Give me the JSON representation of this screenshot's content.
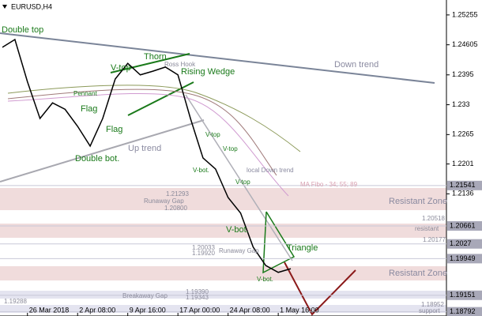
{
  "chart_data": {
    "type": "line",
    "title": "EURUSD,H4",
    "categories": [
      null,
      null,
      "26 Mar 2018",
      null,
      null,
      null,
      "2 Apr 08:00",
      null,
      null,
      null,
      "9 Apr 16:00",
      null,
      null,
      null,
      "17 Apr 00:00",
      null,
      null,
      null,
      "24 Apr 08:00",
      null,
      null,
      null,
      "1 May 16:00",
      null
    ],
    "series": [
      {
        "name": "EURUSD",
        "color": "#000000",
        "values": [
          1.2455,
          1.2472,
          1.238,
          1.23,
          1.2334,
          1.232,
          1.2283,
          1.224,
          1.23,
          1.2386,
          1.242,
          1.2395,
          1.2403,
          1.2412,
          1.2395,
          1.23,
          1.2214,
          1.219,
          1.2128,
          1.2094,
          1.202,
          1.198,
          1.1965,
          1.1973
        ]
      }
    ],
    "ylim": [
      1.187,
      1.2558
    ],
    "yticks": [
      1.25255,
      1.24605,
      1.2395,
      1.233,
      1.2265,
      1.2201,
      1.2136
    ],
    "levels": [
      1.21541,
      1.20661,
      1.2027,
      1.19949,
      1.19151,
      1.18792
    ],
    "annotations": [
      "Double top",
      "Thorn",
      "Ross Hook",
      "Rising Wedge",
      "V-top",
      "Pennant",
      "Flag",
      "Flag",
      "Double bot.",
      "Up trend",
      "Down trend",
      "V-top",
      "V-top",
      "V-bot.",
      "local Down trend",
      "MA Fibo - 34; 55; 89",
      "Resistant Zone",
      "V-top",
      "1.21293",
      "Runaway Gap",
      "1.20800",
      "V-bot.",
      "1.20518",
      "resistant",
      "1.20177",
      "Triangle",
      "1.20033",
      "1.19920",
      "Runaway Gap",
      "Resistant Zone",
      "Breakaway Gap",
      "1.19390",
      "1.19343",
      "1.19288",
      "V-bot.",
      "support",
      "1.18952"
    ]
  }
}
